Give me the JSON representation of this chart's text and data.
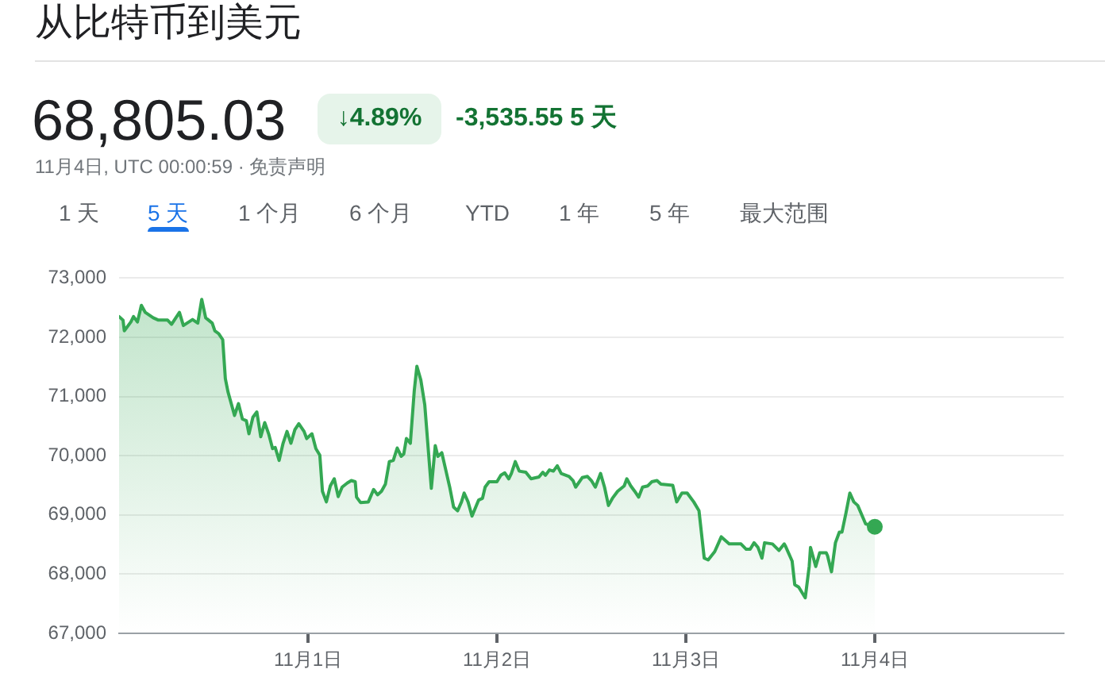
{
  "chart_data": {
    "type": "area",
    "title": "从比特币到美元",
    "annotations": [
      "68,805.03",
      "↓4.89%",
      "-3,535.55 5 天",
      "11月4日, UTC 00:00:59 · 免责声明",
      "1 天",
      "5 天",
      "1 个月",
      "6 个月",
      "YTD",
      "1 年",
      "5 年",
      "最大范围"
    ],
    "xlim": [
      "--10-31T00:00",
      "--11-05T00:00"
    ],
    "xticks": [
      {
        "value": "--11-01",
        "label": "11月1日"
      },
      {
        "value": "--11-02",
        "label": "11月2日"
      },
      {
        "value": "--11-03",
        "label": "11月3日"
      },
      {
        "value": "--11-04",
        "label": "11月4日"
      }
    ],
    "ylim": [
      67000,
      73000
    ],
    "yticks": [
      {
        "value": 67000,
        "label": "67,000"
      },
      {
        "value": 68000,
        "label": "68,000"
      },
      {
        "value": 69000,
        "label": "69,000"
      },
      {
        "value": 70000,
        "label": "70,000"
      },
      {
        "value": 71000,
        "label": "71,000"
      },
      {
        "value": 72000,
        "label": "72,000"
      },
      {
        "value": 73000,
        "label": "73,000"
      }
    ],
    "grid": "y",
    "series": [
      {
        "color": "#34a853",
        "x": [
          "--10-31T00:00",
          "--10-31T00:30",
          "--10-31T00:40",
          "--10-31T01:30",
          "--10-31T01:50",
          "--10-31T02:20",
          "--10-31T02:50",
          "--10-31T03:20",
          "--10-31T04:20",
          "--10-31T05:00",
          "--10-31T06:10",
          "--10-31T06:40",
          "--10-31T07:40",
          "--10-31T08:10",
          "--10-31T09:20",
          "--10-31T10:00",
          "--10-31T10:30",
          "--10-31T11:00",
          "--10-31T11:50",
          "--10-31T12:10",
          "--10-31T12:40",
          "--10-31T13:10",
          "--10-31T13:30",
          "--10-31T13:50",
          "--10-31T14:40",
          "--10-31T15:10",
          "--10-31T15:40",
          "--10-31T16:10",
          "--10-31T16:30",
          "--10-31T17:00",
          "--10-31T17:30",
          "--10-31T18:00",
          "--10-31T18:30",
          "--10-31T19:00",
          "--10-31T19:30",
          "--10-31T19:50",
          "--10-31T20:20",
          "--10-31T20:50",
          "--10-31T21:20",
          "--10-31T21:50",
          "--10-31T22:20",
          "--10-31T22:50",
          "--10-31T23:30",
          "--10-31T23:50",
          "--11-01T00:30",
          "--11-01T01:00",
          "--11-01T01:30",
          "--11-01T01:50",
          "--11-01T02:20",
          "--11-01T02:50",
          "--11-01T03:20",
          "--11-01T03:50",
          "--11-01T04:20",
          "--11-01T05:00",
          "--11-01T05:30",
          "--11-01T06:00",
          "--11-01T06:10",
          "--11-01T06:40",
          "--11-01T07:40",
          "--11-01T08:20",
          "--11-01T08:50",
          "--11-01T09:20",
          "--11-01T09:50",
          "--11-01T10:20",
          "--11-01T10:50",
          "--11-01T11:20",
          "--11-01T11:50",
          "--11-01T12:10",
          "--11-01T12:30",
          "--11-01T13:00",
          "--11-01T13:30",
          "--11-01T13:50",
          "--11-01T14:20",
          "--11-01T14:50",
          "--11-01T15:40",
          "--11-01T16:10",
          "--11-01T16:30",
          "--11-01T17:00",
          "--11-01T17:30",
          "--11-01T18:00",
          "--11-01T18:30",
          "--11-01T19:00",
          "--11-01T19:30",
          "--11-01T19:50",
          "--11-01T20:20",
          "--11-01T20:50",
          "--11-01T21:40",
          "--11-01T22:10",
          "--11-01T22:30",
          "--11-01T23:00",
          "--11-02T00:00",
          "--11-02T00:30",
          "--11-02T01:00",
          "--11-02T01:30",
          "--11-02T01:50",
          "--11-02T02:20",
          "--11-02T02:50",
          "--11-02T03:40",
          "--11-02T04:20",
          "--11-02T05:20",
          "--11-02T05:50",
          "--11-02T06:10",
          "--11-02T06:40",
          "--11-02T07:10",
          "--11-02T07:40",
          "--11-02T08:10",
          "--11-02T09:10",
          "--11-02T09:40",
          "--11-02T10:00",
          "--11-02T10:50",
          "--11-02T11:30",
          "--11-02T12:00",
          "--11-02T12:30",
          "--11-02T13:10",
          "--11-02T13:40",
          "--11-02T14:10",
          "--11-02T14:40",
          "--11-02T15:20",
          "--11-02T16:10",
          "--11-02T16:30",
          "--11-02T17:00",
          "--11-02T17:30",
          "--11-02T18:00",
          "--11-02T18:30",
          "--11-02T19:10",
          "--11-02T19:40",
          "--11-02T20:20",
          "--11-02T20:50",
          "--11-02T22:20",
          "--11-02T22:50",
          "--11-02T23:30",
          "--11-03T00:10",
          "--11-03T01:00",
          "--11-03T01:40",
          "--11-03T02:20",
          "--11-03T02:50",
          "--11-03T03:40",
          "--11-03T04:10",
          "--11-03T04:30",
          "--11-03T05:30",
          "--11-03T07:00",
          "--11-03T07:40",
          "--11-03T08:10",
          "--11-03T08:40",
          "--11-03T09:10",
          "--11-03T09:40",
          "--11-03T10:00",
          "--11-03T11:00",
          "--11-03T11:50",
          "--11-03T12:30",
          "--11-03T12:40",
          "--11-03T13:30",
          "--11-03T13:50",
          "--11-03T14:20",
          "--11-03T15:10",
          "--11-03T15:40",
          "--11-03T15:50",
          "--11-03T16:30",
          "--11-03T17:00",
          "--11-03T17:50",
          "--11-03T18:00",
          "--11-03T18:30",
          "--11-03T19:00",
          "--11-03T19:30",
          "--11-03T19:50",
          "--11-03T20:20",
          "--11-03T20:50",
          "--11-03T21:20",
          "--11-03T21:50",
          "--11-03T22:50",
          "--11-04T00:00"
        ],
        "values": [
          72350,
          72290,
          72110,
          72260,
          72350,
          72260,
          72540,
          72420,
          72330,
          72290,
          72290,
          72220,
          72420,
          72200,
          72300,
          72240,
          72640,
          72330,
          72240,
          72110,
          72060,
          71960,
          71300,
          71080,
          70680,
          70880,
          70620,
          70590,
          70370,
          70650,
          70740,
          70320,
          70560,
          70370,
          70120,
          70140,
          69920,
          70210,
          70410,
          70210,
          70440,
          70540,
          70410,
          70290,
          70370,
          70120,
          70010,
          69400,
          69220,
          69490,
          69610,
          69310,
          69470,
          69540,
          69580,
          69560,
          69300,
          69210,
          69220,
          69430,
          69340,
          69400,
          69520,
          69900,
          69920,
          70130,
          69990,
          70030,
          70290,
          70210,
          71100,
          71510,
          71280,
          70860,
          69450,
          70170,
          69990,
          70050,
          69760,
          69470,
          69130,
          69070,
          69220,
          69370,
          69220,
          68980,
          69250,
          69280,
          69470,
          69560,
          69560,
          69670,
          69710,
          69610,
          69700,
          69900,
          69740,
          69720,
          69610,
          69640,
          69720,
          69670,
          69760,
          69740,
          69830,
          69700,
          69650,
          69580,
          69470,
          69630,
          69650,
          69580,
          69470,
          69700,
          69470,
          69160,
          69280,
          69400,
          69490,
          69610,
          69490,
          69400,
          69300,
          69470,
          69490,
          69560,
          69580,
          69520,
          69500,
          69220,
          69370,
          69370,
          69220,
          69070,
          68270,
          68240,
          68380,
          68530,
          68630,
          68510,
          68510,
          68420,
          68420,
          68530,
          68450,
          68270,
          68530,
          68510,
          68400,
          68510,
          68470,
          68220,
          67820,
          67780,
          67600,
          68130,
          68450,
          68130,
          68360,
          68360,
          68310,
          68040,
          68530,
          68710,
          68710,
          69030,
          69370,
          69220,
          69160,
          68850,
          68800
        ]
      },
      {
        "type": "scatter",
        "color": "#34a853",
        "marker": "circle",
        "x": [
          "--11-04T00:00"
        ],
        "values": [
          68800
        ]
      }
    ]
  }
}
